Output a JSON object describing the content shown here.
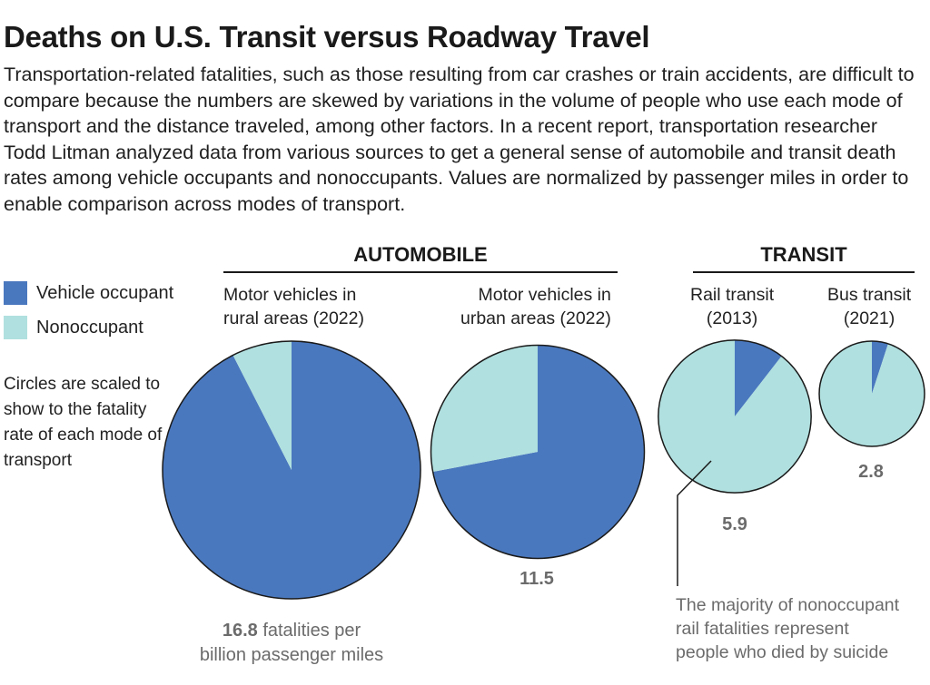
{
  "title": "Deaths on U.S. Transit versus Roadway Travel",
  "intro": "Transportation-related fatalities, such as those resulting from car crashes or train accidents, are difficult to compare because the numbers are skewed by variations in the volume of people who use each mode of transport and the distance traveled, among other factors. In a recent report, transportation researcher Todd Litman analyzed data from various sources to get a general sense of automobile and transit death rates among vehicle occupants and nonoccupants. Values are normalized by passenger miles in order to enable comparison across modes of transport.",
  "legend": {
    "occupant_label": "Vehicle occupant",
    "nonoccupant_label": "Nonoccupant",
    "note": "Circles are scaled to show to the fatality rate of each mode of transport"
  },
  "groups": {
    "automobile": "AUTOMOBILE",
    "transit": "TRANSIT"
  },
  "pies": {
    "rural": {
      "label": "Motor vehicles in\nrural areas (2022)"
    },
    "urban": {
      "label": "Motor vehicles in\nurban areas (2022)",
      "value": "11.5"
    },
    "rail": {
      "label": "Rail transit\n(2013)",
      "value": "5.9"
    },
    "bus": {
      "label": "Bus transit\n(2021)",
      "value": "2.8"
    }
  },
  "rural_value": {
    "number": "16.8",
    "unit_line1": " fatalities per",
    "unit_line2": "billion passenger miles"
  },
  "annotation": "The majority of nonoccupant\nrail fatalities represent\npeople who died by suicide",
  "colors": {
    "occupant": "#4a78be",
    "nonoccupant": "#b0e0df",
    "stroke": "#1a1a1a"
  },
  "chart_data": {
    "type": "pie",
    "title": "Deaths on U.S. Transit versus Roadway Travel",
    "unit": "fatalities per billion passenger miles",
    "series_names": [
      "Vehicle occupant",
      "Nonoccupant"
    ],
    "pies": [
      {
        "name": "Motor vehicles in rural areas (2022)",
        "group": "AUTOMOBILE",
        "total": 16.8,
        "occupant_share": 0.925,
        "nonoccupant_share": 0.075
      },
      {
        "name": "Motor vehicles in urban areas (2022)",
        "group": "AUTOMOBILE",
        "total": 11.5,
        "occupant_share": 0.72,
        "nonoccupant_share": 0.28
      },
      {
        "name": "Rail transit (2013)",
        "group": "TRANSIT",
        "total": 5.9,
        "occupant_share": 0.105,
        "nonoccupant_share": 0.895
      },
      {
        "name": "Bus transit (2021)",
        "group": "TRANSIT",
        "total": 2.8,
        "occupant_share": 0.05,
        "nonoccupant_share": 0.95
      }
    ]
  }
}
